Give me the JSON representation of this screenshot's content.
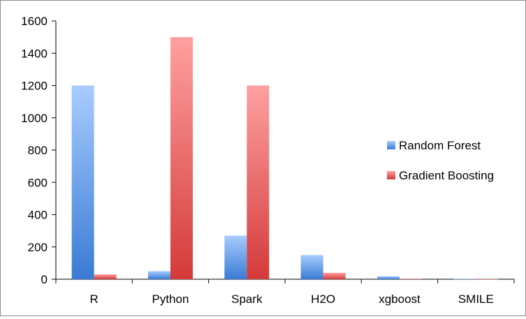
{
  "chart_data": {
    "type": "bar",
    "categories": [
      "R",
      "Python",
      "Spark",
      "H2O",
      "xgboost",
      "SMILE"
    ],
    "series": [
      {
        "name": "Random Forest",
        "values": [
          1200,
          50,
          270,
          150,
          18,
          2
        ],
        "color": "#4a90d9"
      },
      {
        "name": "Gradient Boosting",
        "values": [
          30,
          1500,
          1200,
          40,
          3,
          1
        ],
        "color": "#d94a4a"
      }
    ],
    "ylim": [
      0,
      1600
    ],
    "yticks": [
      0,
      200,
      400,
      600,
      800,
      1000,
      1200,
      1400,
      1600
    ],
    "grid": false,
    "legend": "right"
  }
}
